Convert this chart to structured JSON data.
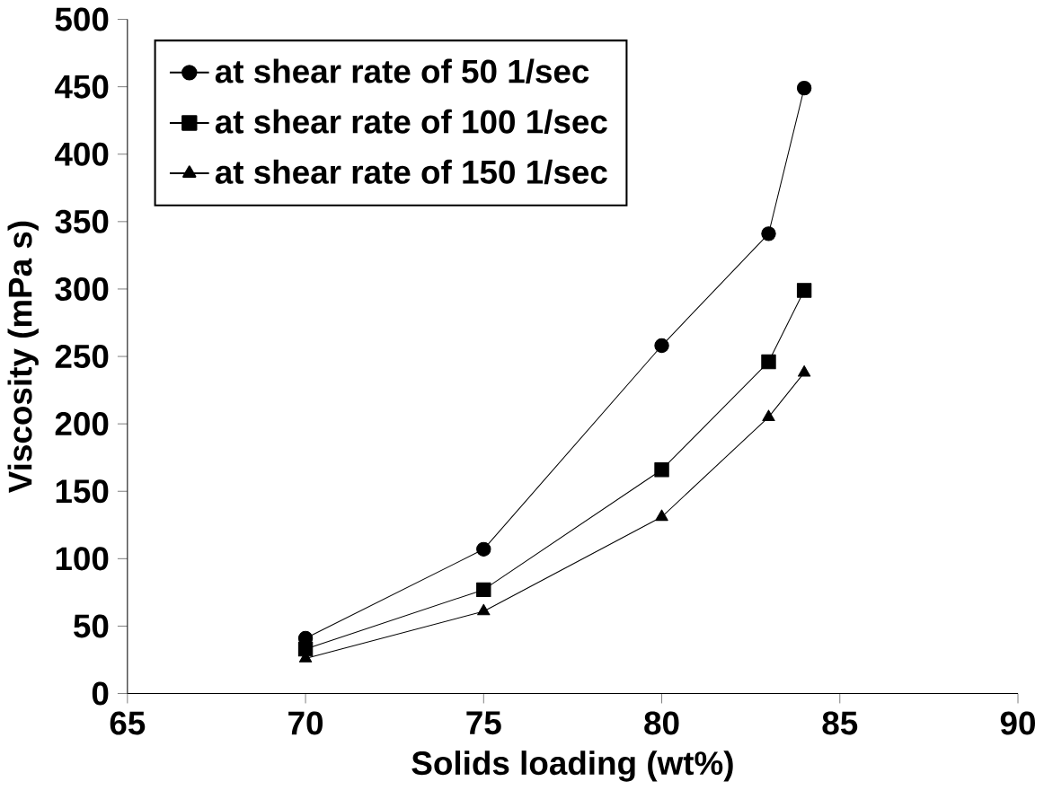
{
  "chart_data": {
    "type": "line",
    "xlabel": "Solids loading (wt%)",
    "ylabel": "Viscosity (mPa s)",
    "x": [
      70,
      75,
      80,
      83,
      84
    ],
    "series": [
      {
        "name": "at shear rate of 50 1/sec",
        "color": "#000000",
        "marker": "circle",
        "values": [
          41,
          107,
          258,
          341,
          449
        ]
      },
      {
        "name": "at shear rate of 100 1/sec",
        "color": "#000000",
        "marker": "square",
        "values": [
          33,
          77,
          166,
          246,
          299
        ]
      },
      {
        "name": "at shear rate of 150 1/sec",
        "color": "#000000",
        "marker": "triangle",
        "values": [
          26,
          61,
          131,
          205,
          238
        ]
      }
    ],
    "xlim": [
      65,
      90
    ],
    "xticks": [
      65,
      70,
      75,
      80,
      85,
      90
    ],
    "ylim": [
      0,
      500
    ],
    "yticks": [
      0,
      50,
      100,
      150,
      200,
      250,
      300,
      350,
      400,
      450,
      500
    ],
    "legend": "top left",
    "grid": false,
    "line_style": "solid"
  }
}
